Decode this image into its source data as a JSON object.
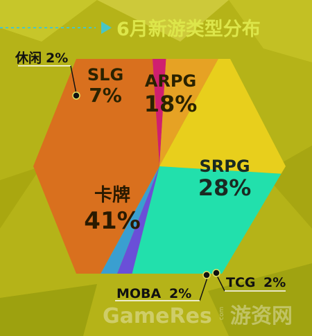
{
  "chart_data": {
    "type": "pie",
    "title": "6月新游类型分布",
    "slices": [
      {
        "label": "SRPG",
        "value": 28,
        "display": "28%",
        "color": "#22e0ac"
      },
      {
        "label": "TCG",
        "value": 2,
        "display": "2%",
        "color": "#6a4fd8"
      },
      {
        "label": "MOBA",
        "value": 2,
        "display": "2%",
        "color": "#3a9fd0"
      },
      {
        "label": "卡牌",
        "value": 41,
        "display": "41%",
        "color": "#d9701e"
      },
      {
        "label": "休闲",
        "value": 2,
        "display": "2%",
        "color": "#d01f6f"
      },
      {
        "label": "SLG",
        "value": 7,
        "display": "7%",
        "color": "#e6a224"
      },
      {
        "label": "ARPG",
        "value": 18,
        "display": "18%",
        "color": "#e8cf1c"
      }
    ]
  },
  "watermark": {
    "brand": "GameRes",
    "suffix": "游资网",
    "com": "com"
  },
  "colors": {
    "background": "#b5b318",
    "title": "#dde64a"
  }
}
